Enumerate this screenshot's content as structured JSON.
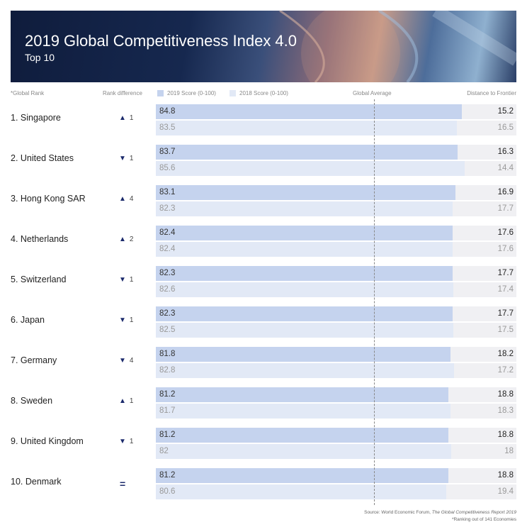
{
  "title": "2019 Global Competitiveness Index 4.0",
  "subtitle": "Top 10",
  "headers": {
    "rank": "*Global Rank",
    "rank_diff": "Rank difference",
    "score2019": "2019 Score (0-100)",
    "score2018": "2018 Score (0-100)",
    "avg": "Global Average",
    "distance": "Distance to Frontier"
  },
  "colors": {
    "score2019": "#c5d3ee",
    "score2018": "#e2e9f6",
    "distance_bg": "#f0f0f3",
    "accent": "#1b2a6b"
  },
  "chart_data": {
    "type": "bar",
    "xlim": [
      0,
      100
    ],
    "countries": [
      {
        "label": "1. Singapore",
        "diff_dir": "up",
        "diff": "1",
        "s2019": "84.8",
        "s2018": "83.5",
        "d2019": "15.2",
        "d2018": "16.5"
      },
      {
        "label": "2. United States",
        "diff_dir": "down",
        "diff": "1",
        "s2019": "83.7",
        "s2018": "85.6",
        "d2019": "16.3",
        "d2018": "14.4"
      },
      {
        "label": "3. Hong Kong SAR",
        "diff_dir": "up",
        "diff": "4",
        "s2019": "83.1",
        "s2018": "82.3",
        "d2019": "16.9",
        "d2018": "17.7"
      },
      {
        "label": "4. Netherlands",
        "diff_dir": "up",
        "diff": "2",
        "s2019": "82.4",
        "s2018": "82.4",
        "d2019": "17.6",
        "d2018": "17.6"
      },
      {
        "label": "5. Switzerland",
        "diff_dir": "down",
        "diff": "1",
        "s2019": "82.3",
        "s2018": "82.6",
        "d2019": "17.7",
        "d2018": "17.4"
      },
      {
        "label": "6. Japan",
        "diff_dir": "down",
        "diff": "1",
        "s2019": "82.3",
        "s2018": "82.5",
        "d2019": "17.7",
        "d2018": "17.5"
      },
      {
        "label": "7. Germany",
        "diff_dir": "down",
        "diff": "4",
        "s2019": "81.8",
        "s2018": "82.8",
        "d2019": "18.2",
        "d2018": "17.2"
      },
      {
        "label": "8. Sweden",
        "diff_dir": "up",
        "diff": "1",
        "s2019": "81.2",
        "s2018": "81.7",
        "d2019": "18.8",
        "d2018": "18.3"
      },
      {
        "label": "9. United Kingdom",
        "diff_dir": "down",
        "diff": "1",
        "s2019": "81.2",
        "s2018": "82",
        "d2019": "18.8",
        "d2018": "18"
      },
      {
        "label": "10. Denmark",
        "diff_dir": "same",
        "diff": "",
        "s2019": "81.2",
        "s2018": "80.6",
        "d2019": "18.8",
        "d2018": "19.4"
      }
    ]
  },
  "source": {
    "prefix": "Source:  World Economic Forum, ",
    "italic": "The Global Competitiveness Report 2019",
    "note": "*Ranking out of 141 Economies"
  }
}
